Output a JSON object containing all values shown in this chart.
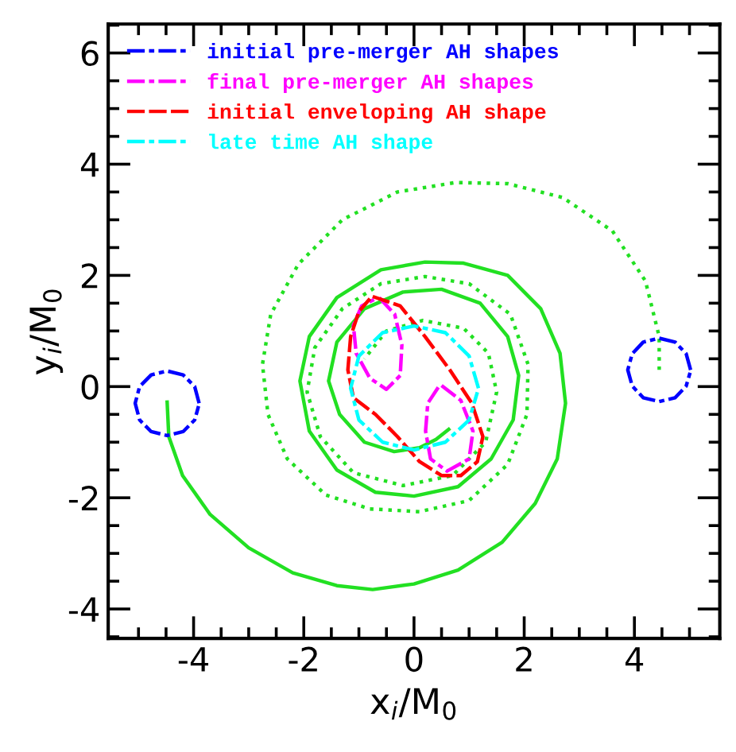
{
  "chart_data": {
    "type": "line",
    "xlabel": "x$_{i}$/M$_{0}$",
    "ylabel": "y$_{i}$/M$_{0}$",
    "xlim": [
      -5.55,
      5.55
    ],
    "ylim": [
      -4.53,
      6.52
    ],
    "xticks": [
      {
        "value": -5,
        "label": null
      },
      {
        "value": -4.5,
        "label": null
      },
      -4,
      {
        "value": -3.5,
        "label": null
      },
      {
        "value": -3,
        "label": null
      },
      {
        "value": -2.5,
        "label": null
      },
      -2,
      {
        "value": -1.5,
        "label": null
      },
      {
        "value": -1,
        "label": null
      },
      {
        "value": -0.5,
        "label": null
      },
      0,
      {
        "value": 0.5,
        "label": null
      },
      {
        "value": 1,
        "label": null
      },
      {
        "value": 1.5,
        "label": null
      },
      2,
      {
        "value": 2.5,
        "label": null
      },
      {
        "value": 3,
        "label": null
      },
      {
        "value": 3.5,
        "label": null
      },
      4,
      {
        "value": 4.5,
        "label": null
      },
      {
        "value": 5,
        "label": null
      }
    ],
    "yticks": [
      {
        "value": -4.5,
        "label": null
      },
      -4,
      {
        "value": -3.5,
        "label": null
      },
      {
        "value": -3,
        "label": null
      },
      {
        "value": -2.5,
        "label": null
      },
      -2,
      {
        "value": -1.5,
        "label": null
      },
      {
        "value": -1,
        "label": null
      },
      {
        "value": -0.5,
        "label": null
      },
      0,
      {
        "value": 0.5,
        "label": null
      },
      {
        "value": 1,
        "label": null
      },
      {
        "value": 1.5,
        "label": null
      },
      2,
      {
        "value": 2.5,
        "label": null
      },
      {
        "value": 3,
        "label": null
      },
      {
        "value": 3.5,
        "label": null
      },
      4,
      {
        "value": 4.5,
        "label": null
      },
      {
        "value": 5,
        "label": null
      },
      {
        "value": 5.5,
        "label": null
      },
      6,
      {
        "value": 6.5,
        "label": null
      }
    ],
    "grid": false,
    "legend": "top left",
    "marker": "none",
    "series": [
      {
        "color": "#22e022",
        "line_style": "solid",
        "x": [
          -4.48,
          -4.45,
          -4.2,
          -3.7,
          -3.0,
          -2.2,
          -1.4,
          -0.75,
          0.0,
          0.8,
          1.6,
          2.2,
          2.6,
          2.75,
          2.65,
          2.3,
          1.7,
          0.9,
          0.2,
          -0.6,
          -1.4,
          -1.9,
          -2.07,
          -1.9,
          -1.4,
          -0.7,
          0.0,
          0.8,
          1.4,
          1.8,
          1.9,
          1.7,
          1.2,
          0.5,
          -0.2,
          -0.9,
          -1.4,
          -1.55,
          -1.35,
          -0.9,
          -0.36,
          0.1,
          0.4,
          0.63
        ],
        "values": [
          -0.28,
          -0.9,
          -1.6,
          -2.3,
          -2.9,
          -3.35,
          -3.58,
          -3.65,
          -3.55,
          -3.3,
          -2.8,
          -2.1,
          -1.3,
          -0.3,
          0.6,
          1.4,
          2.0,
          2.22,
          2.24,
          2.1,
          1.6,
          0.9,
          0.1,
          -0.8,
          -1.5,
          -1.9,
          -1.97,
          -1.8,
          -1.3,
          -0.6,
          0.2,
          0.9,
          1.5,
          1.75,
          1.7,
          1.4,
          0.8,
          0.1,
          -0.5,
          -1.0,
          -1.17,
          -1.1,
          -0.95,
          -0.77
        ]
      },
      {
        "color": "#22e022",
        "line_style": "dotted",
        "x": [
          4.45,
          4.45,
          4.2,
          3.6,
          2.7,
          1.7,
          0.75,
          -0.3,
          -1.3,
          -2.1,
          -2.6,
          -2.75,
          -2.65,
          -2.3,
          -1.6,
          -0.8,
          0.1,
          1.0,
          1.7,
          2.05,
          2.07,
          1.75,
          1.0,
          0.2,
          -0.6,
          -1.3,
          -1.8,
          -1.94,
          -1.7,
          -1.1,
          -0.2,
          0.7,
          1.3,
          1.5,
          1.35,
          0.9,
          0.16,
          -0.5,
          -0.9
        ],
        "values": [
          0.3,
          0.9,
          1.9,
          2.8,
          3.4,
          3.65,
          3.67,
          3.5,
          3.0,
          2.2,
          1.3,
          0.4,
          -0.5,
          -1.3,
          -1.95,
          -2.2,
          -2.25,
          -2.05,
          -1.4,
          -0.5,
          0.4,
          1.3,
          1.85,
          1.98,
          1.85,
          1.4,
          0.7,
          -0.1,
          -0.9,
          -1.55,
          -1.78,
          -1.6,
          -1.0,
          -0.1,
          0.6,
          1.05,
          1.19,
          1.0,
          0.5
        ]
      },
      {
        "name": "initial pre-merger AH shapes",
        "color": "#0000ff",
        "line_style": "dashdot",
        "x": [
          -3.9,
          -3.98,
          -4.19,
          -4.48,
          -4.77,
          -4.98,
          -5.06,
          -4.98,
          -4.77,
          -4.48,
          -4.19,
          -3.98,
          -3.91,
          null,
          5.02,
          4.94,
          4.74,
          4.45,
          4.16,
          3.96,
          3.88,
          3.96,
          4.16,
          4.45,
          4.74,
          4.94,
          5.01
        ],
        "values": [
          -0.3,
          0.0,
          0.21,
          0.28,
          0.21,
          0.0,
          -0.3,
          -0.6,
          -0.81,
          -0.88,
          -0.81,
          -0.6,
          -0.35,
          null,
          0.3,
          0.59,
          0.8,
          0.87,
          0.8,
          0.59,
          0.3,
          0.01,
          -0.2,
          -0.27,
          -0.2,
          0.01,
          0.25
        ]
      },
      {
        "name": "final pre-merger AH shapes",
        "color": "#ff00ff",
        "line_style": "dashdot",
        "x": [
          -0.63,
          -0.35,
          -0.22,
          -0.25,
          -0.5,
          -0.8,
          -1.05,
          -1.1,
          -0.95,
          -0.7,
          null,
          0.5,
          0.85,
          1.07,
          1.0,
          0.6,
          0.3,
          0.21,
          0.25,
          0.45
        ],
        "values": [
          1.6,
          1.3,
          0.75,
          0.2,
          -0.05,
          0.15,
          0.6,
          1.1,
          1.45,
          1.58,
          null,
          0.02,
          -0.25,
          -0.8,
          -1.3,
          -1.52,
          -1.3,
          -0.8,
          -0.3,
          0.0
        ]
      },
      {
        "name": "initial enveloping AH shape",
        "color": "#ff0000",
        "line_style": "dashed",
        "x": [
          -0.75,
          -0.25,
          0.2,
          0.65,
          1.05,
          1.25,
          1.15,
          0.85,
          0.5,
          0.1,
          -0.3,
          -0.7,
          -1.1,
          -1.2,
          -1.15,
          -1.0,
          -0.8
        ],
        "values": [
          1.62,
          1.45,
          0.9,
          0.3,
          -0.3,
          -0.9,
          -1.35,
          -1.6,
          -1.6,
          -1.35,
          -0.9,
          -0.5,
          -0.2,
          0.3,
          0.9,
          1.35,
          1.58
        ]
      },
      {
        "name": "late time AH shape",
        "color": "#00ffff",
        "line_style": "dashdot",
        "x": [
          1.17,
          1.0,
          0.57,
          0.0,
          -0.57,
          -1.0,
          -1.15,
          -1.0,
          -0.57,
          0.0,
          0.57,
          1.0,
          1.15
        ],
        "values": [
          -0.03,
          0.55,
          0.97,
          1.09,
          0.97,
          0.55,
          -0.03,
          -0.6,
          -1.0,
          -1.14,
          -1.0,
          -0.6,
          -0.1
        ]
      }
    ]
  }
}
